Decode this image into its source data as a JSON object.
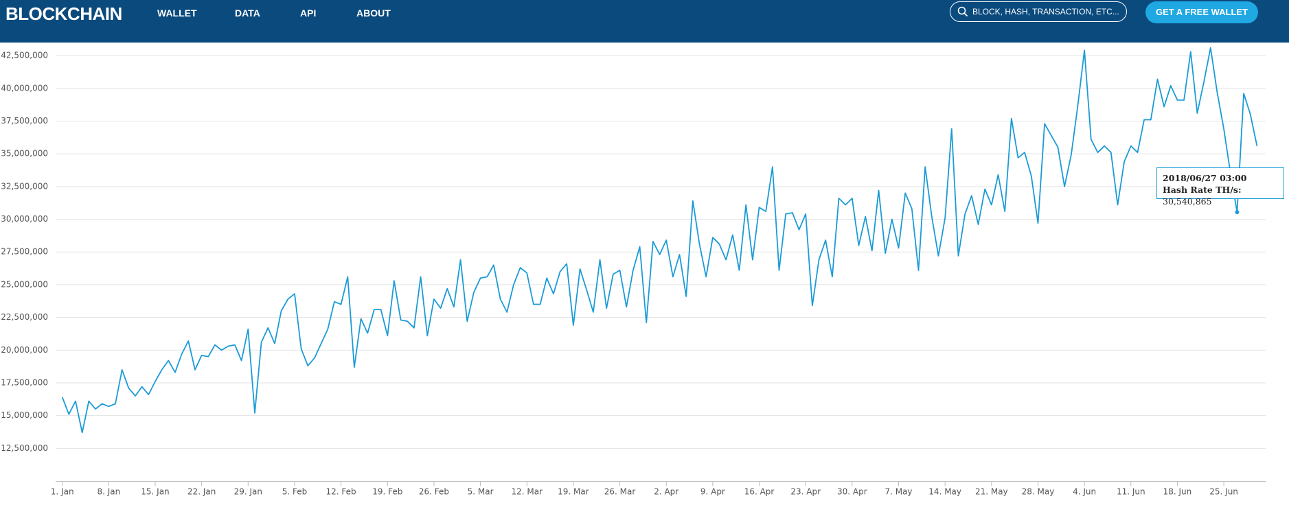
{
  "nav": {
    "logo": "BLOCKCHAIN",
    "links": [
      "WALLET",
      "DATA",
      "API",
      "ABOUT"
    ],
    "search_placeholder": "BLOCK, HASH, TRANSACTION, ETC...",
    "button": "GET A FREE WALLET"
  },
  "chart_data": {
    "type": "line",
    "series": [
      {
        "name": "Hash Rate TH/s",
        "color": "#1a9bd7",
        "values": [
          16400000,
          15100000,
          16100000,
          13700000,
          16100000,
          15500000,
          15900000,
          15700000,
          15900000,
          18500000,
          17100000,
          16500000,
          17200000,
          16600000,
          17600000,
          18500000,
          19200000,
          18300000,
          19700000,
          20700000,
          18500000,
          19600000,
          19500000,
          20400000,
          20000000,
          20300000,
          20400000,
          19200000,
          21600000,
          15200000,
          20600000,
          21700000,
          20500000,
          23000000,
          23900000,
          24300000,
          20100000,
          18800000,
          19400000,
          20500000,
          21600000,
          23700000,
          23500000,
          25600000,
          18700000,
          22400000,
          21300000,
          23100000,
          23100000,
          21100000,
          25300000,
          22300000,
          22200000,
          21700000,
          25600000,
          21100000,
          23900000,
          23200000,
          24700000,
          23300000,
          26900000,
          22200000,
          24400000,
          25500000,
          25600000,
          26500000,
          23900000,
          22900000,
          25000000,
          26300000,
          25900000,
          23500000,
          23500000,
          25500000,
          24300000,
          26000000,
          26600000,
          21900000,
          26200000,
          24600000,
          22900000,
          26900000,
          23200000,
          25800000,
          26100000,
          23300000,
          26100000,
          27900000,
          22100000,
          28300000,
          27300000,
          28400000,
          25600000,
          27300000,
          24100000,
          31400000,
          28100000,
          25600000,
          28600000,
          28100000,
          26900000,
          28800000,
          26100000,
          31100000,
          26900000,
          30900000,
          30600000,
          34000000,
          26100000,
          30400000,
          30500000,
          29200000,
          30400000,
          23400000,
          26900000,
          28400000,
          25600000,
          31600000,
          31100000,
          31600000,
          28000000,
          30200000,
          27600000,
          32200000,
          27400000,
          30000000,
          27800000,
          32000000,
          30800000,
          26100000,
          34000000,
          30200000,
          27200000,
          30100000,
          36900000,
          27200000,
          30400000,
          31800000,
          29600000,
          32300000,
          31100000,
          33400000,
          30600000,
          37700000,
          34700000,
          35100000,
          33300000,
          29700000,
          37300000,
          36400000,
          35500000,
          32500000,
          34900000,
          38700000,
          42900000,
          36100000,
          35100000,
          35600000,
          35100000,
          31100000,
          34400000,
          35600000,
          35100000,
          37600000,
          37600000,
          40700000,
          38600000,
          40200000,
          39100000,
          39100000,
          42800000,
          38100000,
          40500000,
          43100000,
          39700000,
          36900000,
          33500000,
          30540865,
          39600000,
          38000000,
          35600000
        ]
      }
    ],
    "xlim": [
      -1,
      181.3
    ],
    "xticks": [
      {
        "value": 0,
        "label": "1. Jan"
      },
      {
        "value": 7,
        "label": "8. Jan"
      },
      {
        "value": 14,
        "label": "15. Jan"
      },
      {
        "value": 21,
        "label": "22. Jan"
      },
      {
        "value": 28,
        "label": "29. Jan"
      },
      {
        "value": 35,
        "label": "5. Feb"
      },
      {
        "value": 42,
        "label": "12. Feb"
      },
      {
        "value": 49,
        "label": "19. Feb"
      },
      {
        "value": 56,
        "label": "26. Feb"
      },
      {
        "value": 63,
        "label": "5. Mar"
      },
      {
        "value": 70,
        "label": "12. Mar"
      },
      {
        "value": 77,
        "label": "19. Mar"
      },
      {
        "value": 84,
        "label": "26. Mar"
      },
      {
        "value": 91,
        "label": "2. Apr"
      },
      {
        "value": 98,
        "label": "9. Apr"
      },
      {
        "value": 105,
        "label": "16. Apr"
      },
      {
        "value": 112,
        "label": "23. Apr"
      },
      {
        "value": 119,
        "label": "30. Apr"
      },
      {
        "value": 126,
        "label": "7. May"
      },
      {
        "value": 133,
        "label": "14. May"
      },
      {
        "value": 140,
        "label": "21. May"
      },
      {
        "value": 147,
        "label": "28. May"
      },
      {
        "value": 154,
        "label": "4. Jun"
      },
      {
        "value": 161,
        "label": "11. Jun"
      },
      {
        "value": 168,
        "label": "18. Jun"
      },
      {
        "value": 175,
        "label": "25. Jun"
      }
    ],
    "ylim": [
      10000000,
      43500000
    ],
    "yticks": [
      {
        "value": 12500000,
        "label": "12,500,000"
      },
      {
        "value": 15000000,
        "label": "15,000,000"
      },
      {
        "value": 17500000,
        "label": "17,500,000"
      },
      {
        "value": 20000000,
        "label": "20,000,000"
      },
      {
        "value": 22500000,
        "label": "22,500,000"
      },
      {
        "value": 25000000,
        "label": "25,000,000"
      },
      {
        "value": 27500000,
        "label": "27,500,000"
      },
      {
        "value": 30000000,
        "label": "30,000,000"
      },
      {
        "value": 32500000,
        "label": "32,500,000"
      },
      {
        "value": 35000000,
        "label": "35,000,000"
      },
      {
        "value": 37500000,
        "label": "37,500,000"
      },
      {
        "value": 40000000,
        "label": "40,000,000"
      },
      {
        "value": 42500000,
        "label": "42,500,000"
      }
    ],
    "grid": true,
    "tooltip": {
      "title": "2018/06/27 03:00",
      "label": "Hash Rate TH/s:",
      "value": 30540865,
      "value_label": "30,540,865"
    }
  }
}
